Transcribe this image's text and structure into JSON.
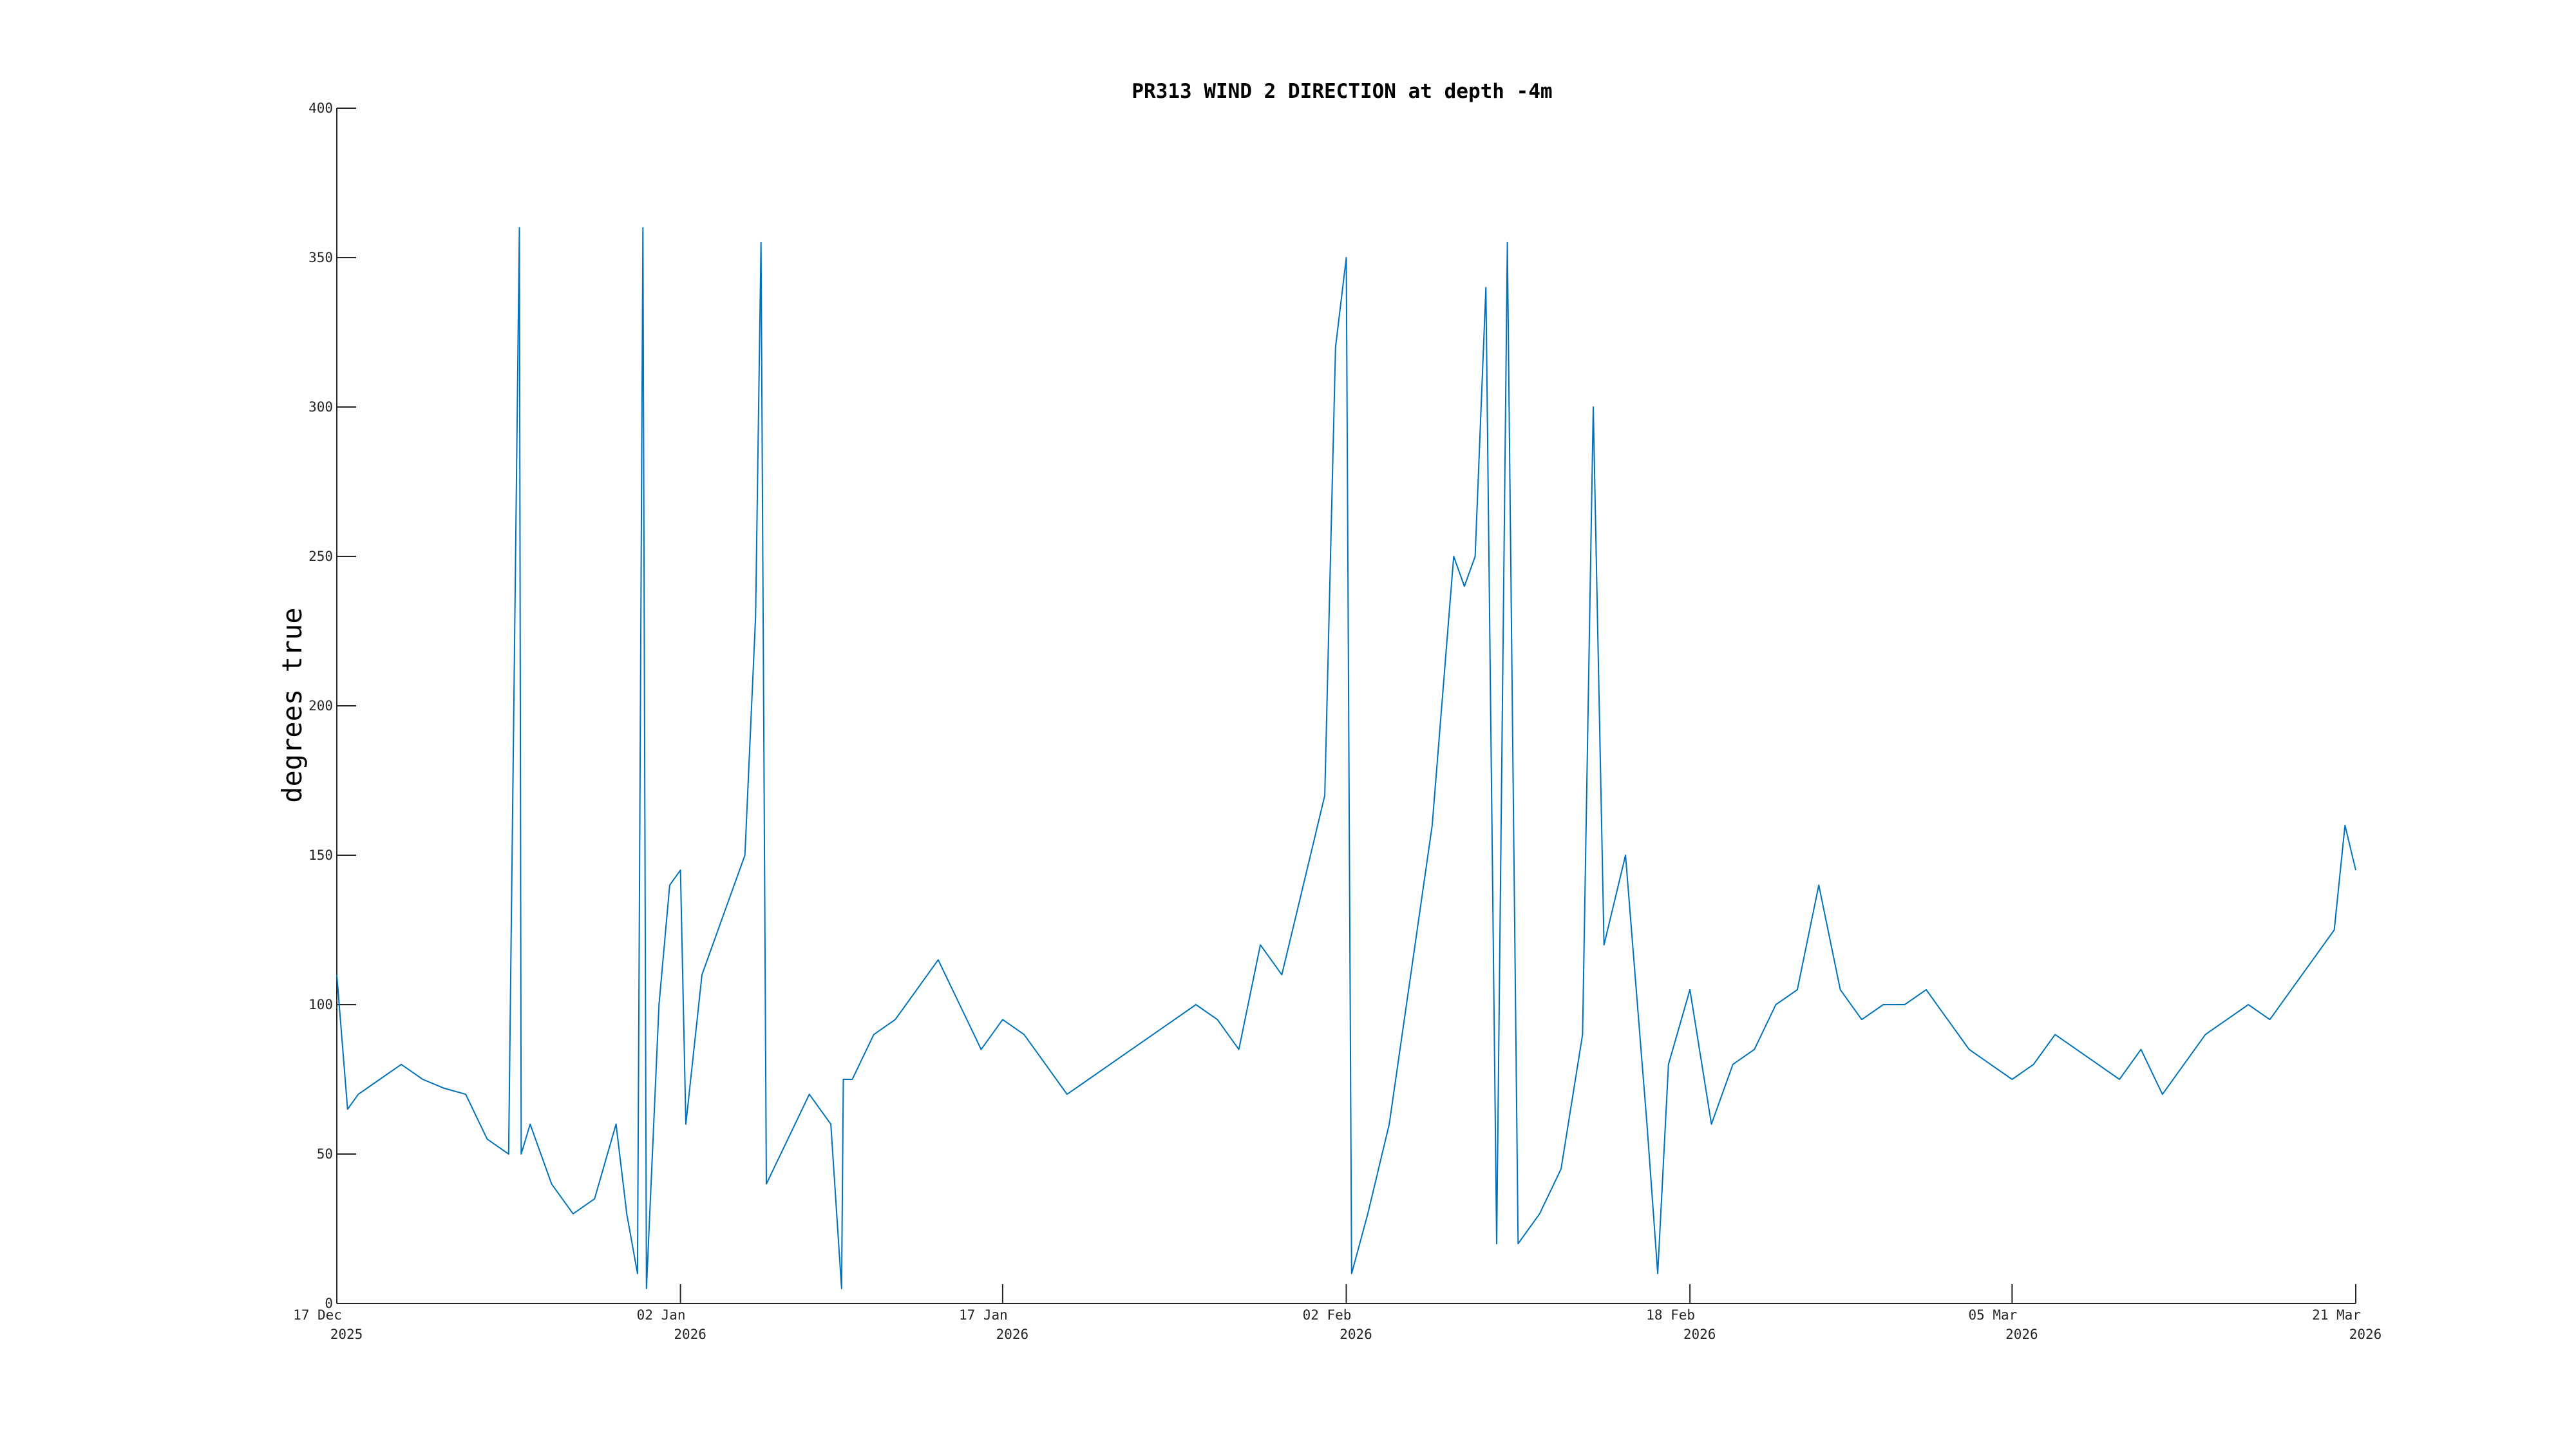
{
  "chart_data": {
    "type": "line",
    "title": "PR313 WIND 2 DIRECTION at depth -4m",
    "xlabel": "",
    "ylabel": "degrees true",
    "ylim": [
      0,
      400
    ],
    "xlim": [
      "2025-12-17",
      "2026-03-21"
    ],
    "grid": false,
    "y_ticks": [
      0,
      50,
      100,
      150,
      200,
      250,
      300,
      350,
      400
    ],
    "x_ticks": [
      {
        "date": "2025-12-17",
        "line1": "17 Dec",
        "line2": "2025"
      },
      {
        "date": "2026-01-02",
        "line1": "02 Jan",
        "line2": "2026"
      },
      {
        "date": "2026-01-17",
        "line1": "17 Jan",
        "line2": "2026"
      },
      {
        "date": "2026-02-02",
        "line1": "02 Feb",
        "line2": "2026"
      },
      {
        "date": "2026-02-18",
        "line1": "18 Feb",
        "line2": "2026"
      },
      {
        "date": "2026-03-05",
        "line1": "05 Mar",
        "line2": "2026"
      },
      {
        "date": "2026-03-21",
        "line1": "21 Mar",
        "line2": "2026"
      }
    ],
    "series": [
      {
        "color": "#0072BD",
        "points": [
          [
            "2025-12-17",
            110
          ],
          [
            "2025-12-17T12:00",
            65
          ],
          [
            "2025-12-18",
            70
          ],
          [
            "2025-12-19",
            75
          ],
          [
            "2025-12-20",
            80
          ],
          [
            "2025-12-21",
            75
          ],
          [
            "2025-12-22",
            72
          ],
          [
            "2025-12-23",
            70
          ],
          [
            "2025-12-24",
            55
          ],
          [
            "2025-12-25",
            50
          ],
          [
            "2025-12-25T12:00",
            360
          ],
          [
            "2025-12-25T14:00",
            50
          ],
          [
            "2025-12-26",
            60
          ],
          [
            "2025-12-27",
            40
          ],
          [
            "2025-12-28",
            30
          ],
          [
            "2025-12-29",
            35
          ],
          [
            "2025-12-30",
            60
          ],
          [
            "2025-12-30T12:00",
            30
          ],
          [
            "2025-12-31",
            10
          ],
          [
            "2025-12-31T06:00",
            360
          ],
          [
            "2025-12-31T10:00",
            5
          ],
          [
            "2026-01-01",
            100
          ],
          [
            "2026-01-01T12:00",
            140
          ],
          [
            "2026-01-02",
            145
          ],
          [
            "2026-01-02T06:00",
            60
          ],
          [
            "2026-01-03",
            110
          ],
          [
            "2026-01-04",
            130
          ],
          [
            "2026-01-05",
            150
          ],
          [
            "2026-01-05T12:00",
            230
          ],
          [
            "2026-01-05T18:00",
            355
          ],
          [
            "2026-01-06",
            40
          ],
          [
            "2026-01-07",
            55
          ],
          [
            "2026-01-08",
            70
          ],
          [
            "2026-01-09",
            60
          ],
          [
            "2026-01-09T12:00",
            5
          ],
          [
            "2026-01-09T14:00",
            75
          ],
          [
            "2026-01-10",
            75
          ],
          [
            "2026-01-11",
            90
          ],
          [
            "2026-01-12",
            95
          ],
          [
            "2026-01-13",
            105
          ],
          [
            "2026-01-14",
            115
          ],
          [
            "2026-01-15",
            100
          ],
          [
            "2026-01-16",
            85
          ],
          [
            "2026-01-17",
            95
          ],
          [
            "2026-01-18",
            90
          ],
          [
            "2026-01-19",
            80
          ],
          [
            "2026-01-20",
            70
          ],
          [
            "2026-01-21",
            75
          ],
          [
            "2026-01-22",
            80
          ],
          [
            "2026-01-23",
            85
          ],
          [
            "2026-01-24",
            90
          ],
          [
            "2026-01-25",
            95
          ],
          [
            "2026-01-26",
            100
          ],
          [
            "2026-01-27",
            95
          ],
          [
            "2026-01-28",
            85
          ],
          [
            "2026-01-29",
            120
          ],
          [
            "2026-01-30",
            110
          ],
          [
            "2026-01-31",
            140
          ],
          [
            "2026-02-01",
            170
          ],
          [
            "2026-02-01T12:00",
            320
          ],
          [
            "2026-02-02",
            350
          ],
          [
            "2026-02-02T06:00",
            10
          ],
          [
            "2026-02-03",
            30
          ],
          [
            "2026-02-04",
            60
          ],
          [
            "2026-02-05",
            110
          ],
          [
            "2026-02-06",
            160
          ],
          [
            "2026-02-07",
            250
          ],
          [
            "2026-02-07T12:00",
            240
          ],
          [
            "2026-02-08",
            250
          ],
          [
            "2026-02-08T12:00",
            340
          ],
          [
            "2026-02-09",
            20
          ],
          [
            "2026-02-09T12:00",
            355
          ],
          [
            "2026-02-10",
            20
          ],
          [
            "2026-02-11",
            30
          ],
          [
            "2026-02-12",
            45
          ],
          [
            "2026-02-13",
            90
          ],
          [
            "2026-02-13T12:00",
            300
          ],
          [
            "2026-02-14",
            120
          ],
          [
            "2026-02-15",
            150
          ],
          [
            "2026-02-16",
            60
          ],
          [
            "2026-02-16T12:00",
            10
          ],
          [
            "2026-02-17",
            80
          ],
          [
            "2026-02-18",
            105
          ],
          [
            "2026-02-19",
            60
          ],
          [
            "2026-02-20",
            80
          ],
          [
            "2026-02-21",
            85
          ],
          [
            "2026-02-22",
            100
          ],
          [
            "2026-02-23",
            105
          ],
          [
            "2026-02-24",
            140
          ],
          [
            "2026-02-25",
            105
          ],
          [
            "2026-02-26",
            95
          ],
          [
            "2026-02-27",
            100
          ],
          [
            "2026-02-28",
            100
          ],
          [
            "2026-03-01",
            105
          ],
          [
            "2026-03-02",
            95
          ],
          [
            "2026-03-03",
            85
          ],
          [
            "2026-03-04",
            80
          ],
          [
            "2026-03-05",
            75
          ],
          [
            "2026-03-06",
            80
          ],
          [
            "2026-03-07",
            90
          ],
          [
            "2026-03-08",
            85
          ],
          [
            "2026-03-09",
            80
          ],
          [
            "2026-03-10",
            75
          ],
          [
            "2026-03-11",
            85
          ],
          [
            "2026-03-12",
            70
          ],
          [
            "2026-03-13",
            80
          ],
          [
            "2026-03-14",
            90
          ],
          [
            "2026-03-15",
            95
          ],
          [
            "2026-03-16",
            100
          ],
          [
            "2026-03-17",
            95
          ],
          [
            "2026-03-18",
            105
          ],
          [
            "2026-03-19",
            115
          ],
          [
            "2026-03-20",
            125
          ],
          [
            "2026-03-20T12:00",
            160
          ],
          [
            "2026-03-21",
            145
          ]
        ]
      }
    ]
  }
}
